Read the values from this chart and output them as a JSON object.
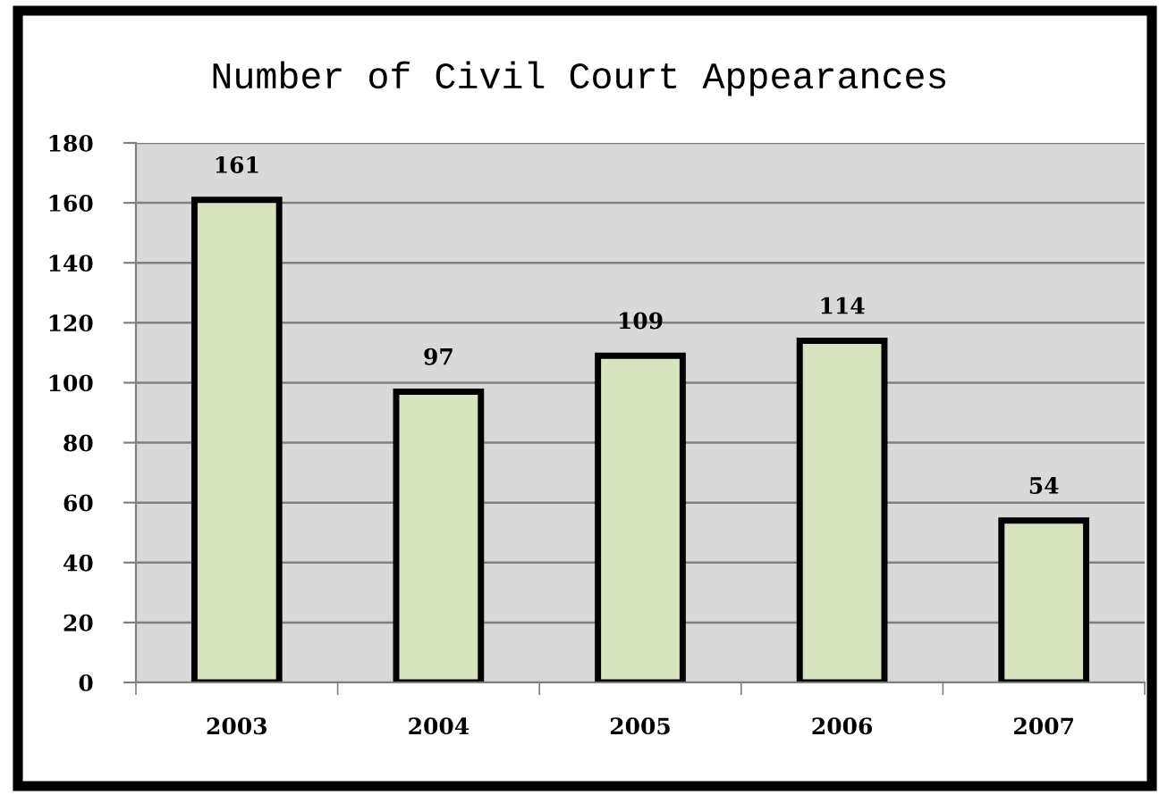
{
  "chart_data": {
    "type": "bar",
    "title": "Number of Civil Court Appearances",
    "categories": [
      "2003",
      "2004",
      "2005",
      "2006",
      "2007"
    ],
    "values": [
      161,
      97,
      109,
      114,
      54
    ],
    "color": "#d7e4bd",
    "ylim": [
      0,
      180
    ],
    "yticks": [
      0,
      20,
      40,
      60,
      80,
      100,
      120,
      140,
      160,
      180
    ],
    "grid": "y",
    "data_labels": true
  }
}
